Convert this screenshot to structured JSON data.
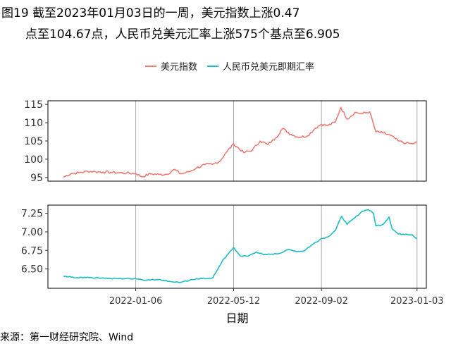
{
  "title": {
    "line1": "图19  截至2023年01月03日的一周，美元指数上涨0.47",
    "line2": "点至104.67点，人民币兑美元汇率上涨575个基点至6.905"
  },
  "source": "来源：第一财经研究院、Wind",
  "colors": {
    "usd_index": "#ee7b74",
    "cny_rate": "#1bbcc4",
    "grid": "#aaaaaa"
  },
  "chart_data": [
    {
      "type": "line",
      "series": [
        {
          "name": "美元指数",
          "points": [
            [
              "2021-10-05",
              95.1
            ],
            [
              "2021-10-15",
              96.1
            ],
            [
              "2021-10-25",
              96.3
            ],
            [
              "2021-11-05",
              96.7
            ],
            [
              "2021-11-15",
              96.6
            ],
            [
              "2021-11-25",
              96.5
            ],
            [
              "2021-12-05",
              96.4
            ],
            [
              "2021-12-15",
              96.3
            ],
            [
              "2021-12-25",
              96.2
            ],
            [
              "2022-01-06",
              96.1
            ],
            [
              "2022-01-14",
              95.2
            ],
            [
              "2022-01-25",
              96.0
            ],
            [
              "2022-02-05",
              95.8
            ],
            [
              "2022-02-15",
              95.9
            ],
            [
              "2022-02-25",
              97.2
            ],
            [
              "2022-03-05",
              96.0
            ],
            [
              "2022-03-15",
              96.5
            ],
            [
              "2022-03-25",
              97.6
            ],
            [
              "2022-04-05",
              98.5
            ],
            [
              "2022-04-15",
              98.6
            ],
            [
              "2022-04-25",
              99.6
            ],
            [
              "2022-05-01",
              101.5
            ],
            [
              "2022-05-12",
              104.2
            ],
            [
              "2022-05-25",
              101.8
            ],
            [
              "2022-06-05",
              102.5
            ],
            [
              "2022-06-15",
              105.0
            ],
            [
              "2022-06-25",
              104.0
            ],
            [
              "2022-07-05",
              105.8
            ],
            [
              "2022-07-14",
              108.4
            ],
            [
              "2022-07-25",
              106.8
            ],
            [
              "2022-08-05",
              106.0
            ],
            [
              "2022-08-15",
              106.4
            ],
            [
              "2022-08-25",
              108.5
            ],
            [
              "2022-09-02",
              109.6
            ],
            [
              "2022-09-10",
              109.2
            ],
            [
              "2022-09-20",
              110.2
            ],
            [
              "2022-09-27",
              114.2
            ],
            [
              "2022-10-05",
              111.0
            ],
            [
              "2022-10-15",
              112.8
            ],
            [
              "2022-10-25",
              112.5
            ],
            [
              "2022-11-03",
              113.0
            ],
            [
              "2022-11-11",
              107.5
            ],
            [
              "2022-11-20",
              107.2
            ],
            [
              "2022-11-30",
              106.5
            ],
            [
              "2022-12-10",
              105.0
            ],
            [
              "2022-12-20",
              104.4
            ],
            [
              "2022-12-28",
              104.2
            ],
            [
              "2023-01-03",
              104.7
            ]
          ]
        }
      ],
      "ylim": [
        94,
        116
      ],
      "yticks": [
        95,
        100,
        105,
        110,
        115
      ],
      "vlines": [
        "2022-01-06",
        "2022-05-12",
        "2022-09-02",
        "2023-01-03"
      ],
      "grid": "vertical lines at tick dates"
    },
    {
      "type": "line",
      "series": [
        {
          "name": "人民币兑美元即期汇率",
          "points": [
            [
              "2021-10-05",
              6.4
            ],
            [
              "2021-10-15",
              6.39
            ],
            [
              "2021-10-25",
              6.38
            ],
            [
              "2021-11-05",
              6.39
            ],
            [
              "2021-11-15",
              6.38
            ],
            [
              "2021-11-25",
              6.38
            ],
            [
              "2021-12-05",
              6.37
            ],
            [
              "2021-12-15",
              6.37
            ],
            [
              "2021-12-25",
              6.37
            ],
            [
              "2022-01-06",
              6.37
            ],
            [
              "2022-01-20",
              6.35
            ],
            [
              "2022-02-05",
              6.36
            ],
            [
              "2022-02-20",
              6.33
            ],
            [
              "2022-03-05",
              6.32
            ],
            [
              "2022-03-15",
              6.34
            ],
            [
              "2022-03-25",
              6.37
            ],
            [
              "2022-04-05",
              6.37
            ],
            [
              "2022-04-15",
              6.38
            ],
            [
              "2022-04-22",
              6.5
            ],
            [
              "2022-04-28",
              6.62
            ],
            [
              "2022-05-05",
              6.7
            ],
            [
              "2022-05-12",
              6.79
            ],
            [
              "2022-05-20",
              6.68
            ],
            [
              "2022-05-30",
              6.67
            ],
            [
              "2022-06-10",
              6.73
            ],
            [
              "2022-06-20",
              6.69
            ],
            [
              "2022-06-30",
              6.7
            ],
            [
              "2022-07-10",
              6.71
            ],
            [
              "2022-07-20",
              6.76
            ],
            [
              "2022-07-30",
              6.74
            ],
            [
              "2022-08-10",
              6.74
            ],
            [
              "2022-08-20",
              6.82
            ],
            [
              "2022-09-02",
              6.91
            ],
            [
              "2022-09-10",
              6.93
            ],
            [
              "2022-09-20",
              7.02
            ],
            [
              "2022-09-28",
              7.21
            ],
            [
              "2022-10-05",
              7.1
            ],
            [
              "2022-10-15",
              7.19
            ],
            [
              "2022-10-25",
              7.28
            ],
            [
              "2022-11-01",
              7.3
            ],
            [
              "2022-11-08",
              7.25
            ],
            [
              "2022-11-11",
              7.08
            ],
            [
              "2022-11-20",
              7.1
            ],
            [
              "2022-11-28",
              7.2
            ],
            [
              "2022-12-02",
              7.04
            ],
            [
              "2022-12-10",
              6.97
            ],
            [
              "2022-12-20",
              6.97
            ],
            [
              "2022-12-28",
              6.96
            ],
            [
              "2023-01-03",
              6.905
            ]
          ]
        }
      ],
      "ylim": [
        6.24,
        7.36
      ],
      "yticks": [
        6.5,
        6.75,
        7.0,
        7.25
      ],
      "ytick_labels": [
        "6.50",
        "6.75",
        "7.00",
        "7.25"
      ],
      "vlines": [
        "2022-01-06",
        "2022-05-12",
        "2022-09-02",
        "2023-01-03"
      ]
    }
  ],
  "x_axis": {
    "ticks": [
      "2022-01-06",
      "2022-05-12",
      "2022-09-02",
      "2023-01-03"
    ],
    "label": "日期",
    "range": [
      "2021-09-15",
      "2023-01-15"
    ]
  }
}
